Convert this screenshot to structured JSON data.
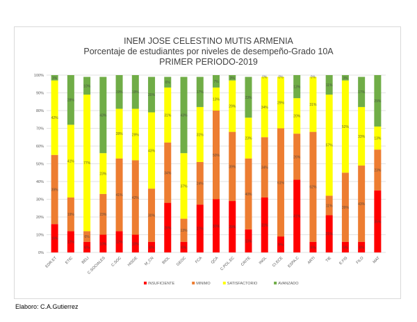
{
  "chart_data": {
    "type": "bar",
    "stacked": true,
    "percent": true,
    "title": [
      "INEM JOSE CELESTINO MUTIS ARMENIA",
      "Porcentaje de estudiantes por niveles de desempeño-Grado 10A",
      "PRIMER PERIODO-2019"
    ],
    "xlabel": "",
    "ylabel": "",
    "ylim": [
      0,
      100
    ],
    "yticks": [
      "0%",
      "10%",
      "20%",
      "30%",
      "40%",
      "50%",
      "60%",
      "70%",
      "80%",
      "90%",
      "100%"
    ],
    "grid": true,
    "legend_position": "bottom",
    "categories": [
      "EDR.ET",
      "ETIC",
      "BELI",
      "C.SOCIALES",
      "C.SOC",
      "HISGE",
      "M_CN",
      "BIOL",
      "GEOC",
      "FCA",
      "QCA",
      "C.POL.EC",
      "CRITE",
      "INGL",
      "CI.ECE",
      "ESPA.C",
      "ARTI",
      "TIE",
      "E.FIS",
      "FILO",
      "MAT"
    ],
    "series": [
      {
        "name": "INSUFICIENTE",
        "color": "#ff0000",
        "values": [
          16,
          12,
          6,
          10,
          12,
          10,
          6,
          28,
          6,
          27,
          30,
          29,
          13,
          31,
          9,
          41,
          6,
          21,
          6,
          6,
          35
        ]
      },
      {
        "name": "MINIMO",
        "color": "#ed7d31",
        "values": [
          39,
          19,
          6,
          23,
          41,
          42,
          30,
          34,
          13,
          24,
          50,
          39,
          40,
          34,
          61,
          26,
          62,
          11,
          39,
          43,
          23
        ]
      },
      {
        "name": "SATISFACTORIO",
        "color": "#ffff00",
        "values": [
          42,
          41,
          77,
          23,
          28,
          29,
          43,
          31,
          37,
          31,
          13,
          29,
          23,
          34,
          29,
          20,
          31,
          57,
          52,
          33,
          13
        ]
      },
      {
        "name": "AVANZADO",
        "color": "#70ad47",
        "values": [
          3,
          28,
          10,
          43,
          19,
          19,
          20,
          6,
          43,
          17,
          7,
          3,
          23,
          0,
          0,
          13,
          0,
          11,
          3,
          17,
          29
        ]
      }
    ]
  },
  "credit": "Elaboro: C.A.Gutierrez"
}
